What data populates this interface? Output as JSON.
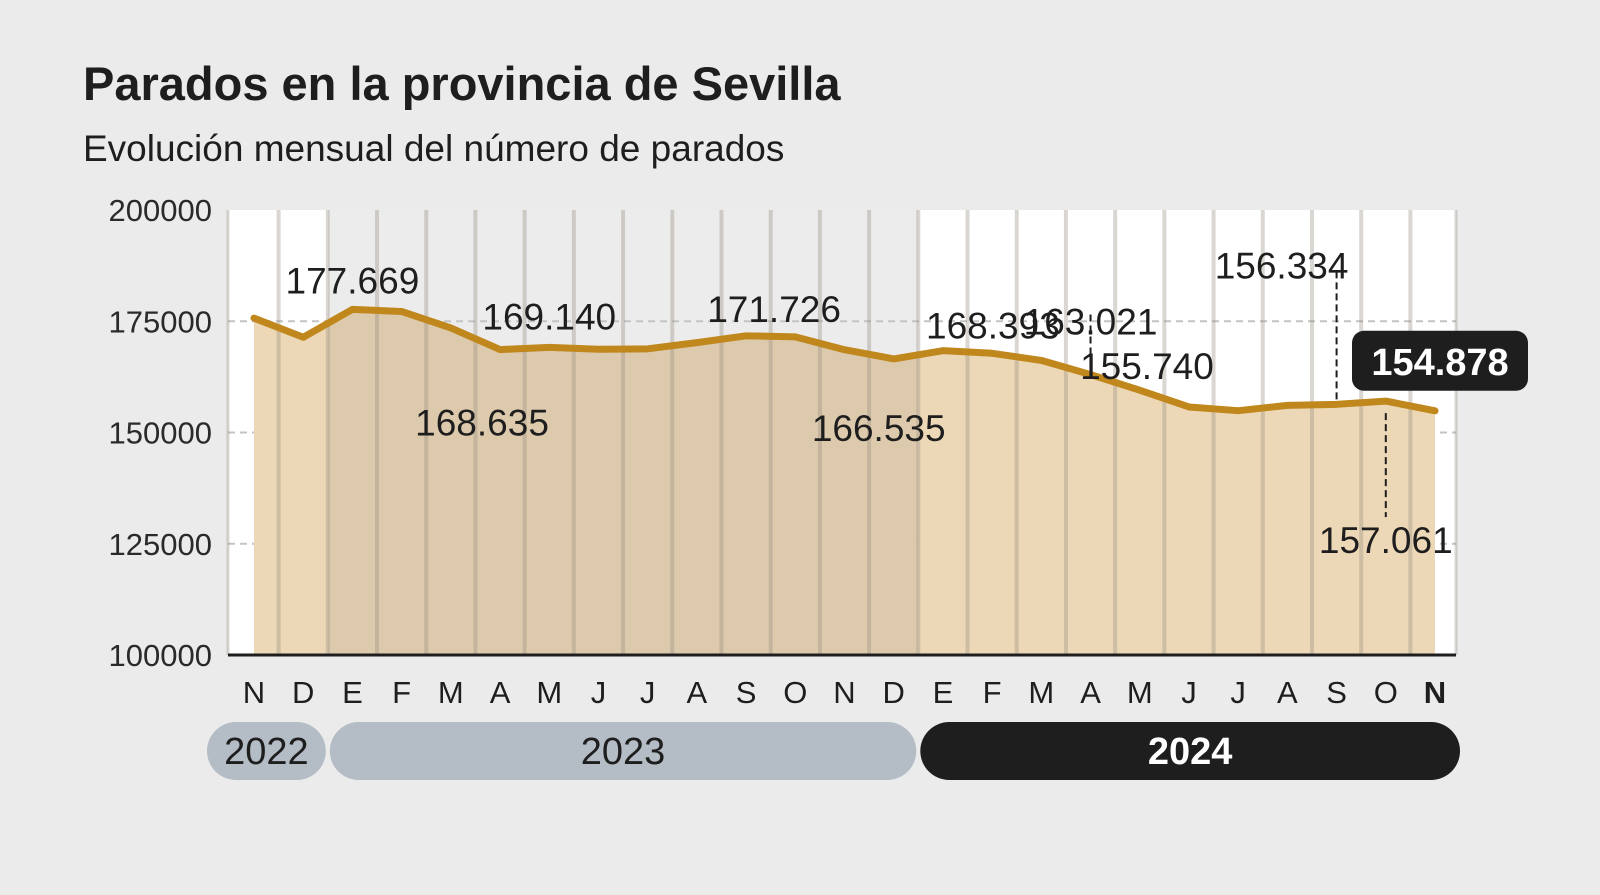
{
  "title": "Parados en la provincia de Sevilla",
  "subtitle": "Evolución mensual del número de parados",
  "colors": {
    "background": "#ebebeb",
    "line": "#c0871c",
    "fill_light": "#ecd7b6",
    "fill_dark": "#ddcaad",
    "year_pill_past": "#b4bdc5",
    "year_pill_current": "#1e1e1e"
  },
  "chart_data": {
    "type": "area",
    "title": "Parados en la provincia de Sevilla",
    "subtitle": "Evolución mensual del número de parados",
    "xlabel": "",
    "ylabel": "",
    "ylim": [
      100000,
      200000
    ],
    "yticks": [
      "200000",
      "175000",
      "150000",
      "125000",
      "100000"
    ],
    "ytick_values": [
      200000,
      175000,
      150000,
      125000,
      100000
    ],
    "grid": true,
    "categories": [
      "N",
      "D",
      "E",
      "F",
      "M",
      "A",
      "M",
      "J",
      "J",
      "A",
      "S",
      "O",
      "N",
      "D",
      "E",
      "F",
      "M",
      "A",
      "M",
      "J",
      "J",
      "A",
      "S",
      "O",
      "N"
    ],
    "years": [
      {
        "label": "2022",
        "months": 2,
        "current": false
      },
      {
        "label": "2023",
        "months": 12,
        "current": false
      },
      {
        "label": "2024",
        "months": 11,
        "current": true
      }
    ],
    "values": [
      175700,
      171400,
      177669,
      177200,
      173500,
      168635,
      169140,
      168700,
      168800,
      170200,
      171726,
      171500,
      168600,
      166535,
      168393,
      167800,
      166200,
      163021,
      159500,
      155740,
      154900,
      156100,
      156334,
      157061,
      154878
    ],
    "data_labels": [
      {
        "index": 2,
        "text": "177.669"
      },
      {
        "index": 5,
        "text": "168.635"
      },
      {
        "index": 6,
        "text": "169.140"
      },
      {
        "index": 10,
        "text": "171.726"
      },
      {
        "index": 13,
        "text": "166.535"
      },
      {
        "index": 14,
        "text": "168.393"
      },
      {
        "index": 17,
        "text": "163.021"
      },
      {
        "index": 19,
        "text": "155.740"
      },
      {
        "index": 22,
        "text": "156.334"
      },
      {
        "index": 23,
        "text": "157.061"
      },
      {
        "index": 24,
        "text": "154.878",
        "highlight": true
      }
    ]
  }
}
